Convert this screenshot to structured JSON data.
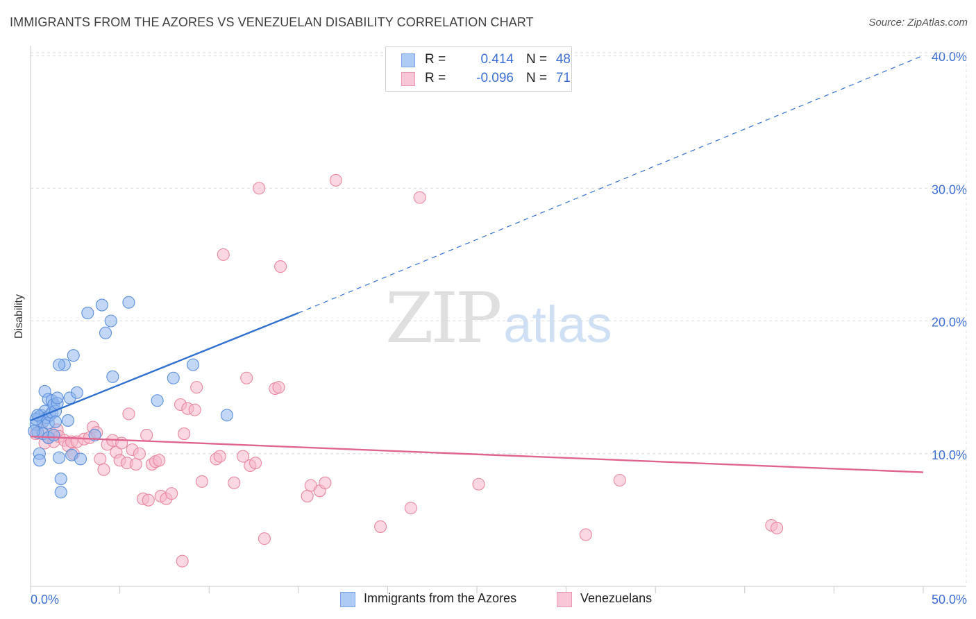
{
  "title": "IMMIGRANTS FROM THE AZORES VS VENEZUELAN DISABILITY CORRELATION CHART",
  "source": "Source: ZipAtlas.com",
  "watermark": {
    "zip": "ZIP",
    "atlas": "atlas"
  },
  "legend": {
    "rows": [
      {
        "r_label": "R =",
        "r_value": "0.414",
        "n_label": "N =",
        "n_value": "48",
        "color": "#aecbf5",
        "border": "#7aa3e0"
      },
      {
        "r_label": "R =",
        "r_value": "-0.096",
        "n_label": "N =",
        "n_value": "71",
        "color": "#f8c6d6",
        "border": "#e99ab5"
      }
    ]
  },
  "bottom_legend": [
    {
      "label": "Immigrants from the Azores",
      "color": "#aecbf5",
      "border": "#7aa3e0"
    },
    {
      "label": "Venezuelans",
      "color": "#f8c6d6",
      "border": "#e99ab5"
    }
  ],
  "chart_data": {
    "type": "scatter",
    "title": "IMMIGRANTS FROM THE AZORES VS VENEZUELAN DISABILITY CORRELATION CHART",
    "xlabel": "",
    "ylabel": "Disability",
    "xlim": [
      0,
      50
    ],
    "ylim": [
      0,
      40
    ],
    "x_tick_labels": [
      "0.0%",
      "50.0%"
    ],
    "y_ticks": [
      10,
      20,
      30,
      40
    ],
    "y_tick_labels": [
      "10.0%",
      "20.0%",
      "30.0%",
      "40.0%"
    ],
    "grid": true,
    "series": [
      {
        "name": "Immigrants from the Azores",
        "color": "#8fb6ec",
        "stroke": "#5b8fdc",
        "trend_color": "#2f6fd0",
        "trend": {
          "x0": 0,
          "y0": 12.5,
          "x1": 15,
          "y1": 20.6,
          "x_end": 50,
          "y_end": 40
        },
        "points": [
          [
            0.3,
            12.2
          ],
          [
            0.4,
            11.6
          ],
          [
            0.5,
            12.8
          ],
          [
            0.6,
            12.9
          ],
          [
            0.7,
            12.4
          ],
          [
            0.8,
            13.2
          ],
          [
            0.8,
            14.7
          ],
          [
            0.9,
            12.7
          ],
          [
            1.0,
            12.3
          ],
          [
            1.0,
            14.1
          ],
          [
            1.1,
            12.9
          ],
          [
            1.2,
            13.1
          ],
          [
            1.2,
            14.0
          ],
          [
            1.3,
            13.7
          ],
          [
            1.4,
            13.2
          ],
          [
            1.4,
            12.4
          ],
          [
            1.5,
            13.8
          ],
          [
            1.5,
            14.2
          ],
          [
            0.5,
            10.0
          ],
          [
            0.5,
            9.5
          ],
          [
            1.6,
            9.7
          ],
          [
            1.7,
            8.1
          ],
          [
            1.7,
            7.1
          ],
          [
            1.9,
            16.7
          ],
          [
            2.1,
            12.5
          ],
          [
            2.2,
            14.2
          ],
          [
            2.3,
            9.9
          ],
          [
            2.4,
            17.4
          ],
          [
            2.6,
            14.6
          ],
          [
            2.8,
            9.6
          ],
          [
            3.2,
            20.6
          ],
          [
            3.6,
            11.4
          ],
          [
            4.0,
            21.2
          ],
          [
            4.2,
            19.1
          ],
          [
            4.5,
            20.0
          ],
          [
            4.6,
            15.8
          ],
          [
            5.5,
            21.4
          ],
          [
            7.1,
            14.0
          ],
          [
            8.0,
            15.7
          ],
          [
            9.1,
            16.7
          ],
          [
            11.0,
            12.9
          ],
          [
            0.3,
            12.6
          ],
          [
            0.4,
            12.9
          ],
          [
            0.7,
            11.5
          ],
          [
            1.0,
            11.2
          ],
          [
            1.3,
            11.4
          ],
          [
            0.2,
            11.7
          ],
          [
            1.6,
            16.7
          ]
        ]
      },
      {
        "name": "Venezuelans",
        "color": "#f6b7cb",
        "stroke": "#e8879f",
        "trend_color": "#e0658e",
        "trend": {
          "x0": 0,
          "y0": 11.3,
          "x1": 50,
          "y1": 8.6
        },
        "points": [
          [
            0.3,
            11.5
          ],
          [
            0.6,
            11.8
          ],
          [
            0.8,
            10.8
          ],
          [
            1.0,
            11.2
          ],
          [
            1.2,
            11.5
          ],
          [
            1.3,
            10.9
          ],
          [
            1.5,
            11.8
          ],
          [
            1.6,
            11.3
          ],
          [
            1.9,
            11.0
          ],
          [
            2.1,
            10.6
          ],
          [
            2.3,
            10.9
          ],
          [
            2.4,
            10.0
          ],
          [
            2.6,
            10.9
          ],
          [
            3.0,
            11.1
          ],
          [
            3.3,
            11.2
          ],
          [
            3.5,
            12.0
          ],
          [
            3.7,
            11.6
          ],
          [
            3.9,
            9.6
          ],
          [
            4.1,
            8.8
          ],
          [
            4.3,
            10.7
          ],
          [
            4.6,
            11.0
          ],
          [
            4.8,
            10.1
          ],
          [
            5.0,
            9.5
          ],
          [
            5.1,
            10.8
          ],
          [
            5.4,
            9.3
          ],
          [
            5.5,
            13.0
          ],
          [
            5.7,
            10.3
          ],
          [
            5.9,
            9.2
          ],
          [
            6.1,
            10.0
          ],
          [
            6.3,
            6.6
          ],
          [
            6.5,
            11.4
          ],
          [
            6.6,
            6.5
          ],
          [
            6.8,
            9.2
          ],
          [
            7.0,
            9.4
          ],
          [
            7.2,
            9.5
          ],
          [
            7.3,
            6.8
          ],
          [
            7.6,
            6.6
          ],
          [
            7.9,
            7.0
          ],
          [
            8.4,
            13.7
          ],
          [
            8.8,
            13.4
          ],
          [
            9.2,
            13.3
          ],
          [
            8.6,
            11.5
          ],
          [
            9.3,
            15.0
          ],
          [
            9.6,
            7.9
          ],
          [
            10.4,
            9.6
          ],
          [
            10.6,
            9.8
          ],
          [
            10.8,
            25.0
          ],
          [
            11.4,
            7.8
          ],
          [
            11.9,
            9.8
          ],
          [
            12.1,
            15.7
          ],
          [
            12.3,
            9.1
          ],
          [
            12.6,
            9.3
          ],
          [
            12.8,
            30.0
          ],
          [
            13.1,
            3.6
          ],
          [
            13.7,
            14.9
          ],
          [
            13.9,
            15.0
          ],
          [
            14.0,
            24.1
          ],
          [
            15.5,
            6.8
          ],
          [
            15.7,
            7.6
          ],
          [
            16.2,
            7.2
          ],
          [
            16.5,
            7.8
          ],
          [
            17.1,
            30.6
          ],
          [
            19.6,
            4.5
          ],
          [
            21.3,
            5.9
          ],
          [
            21.8,
            29.3
          ],
          [
            25.1,
            7.7
          ],
          [
            31.1,
            3.9
          ],
          [
            33.0,
            8.0
          ],
          [
            41.5,
            4.6
          ],
          [
            41.8,
            4.4
          ],
          [
            8.5,
            1.9
          ]
        ]
      }
    ]
  }
}
